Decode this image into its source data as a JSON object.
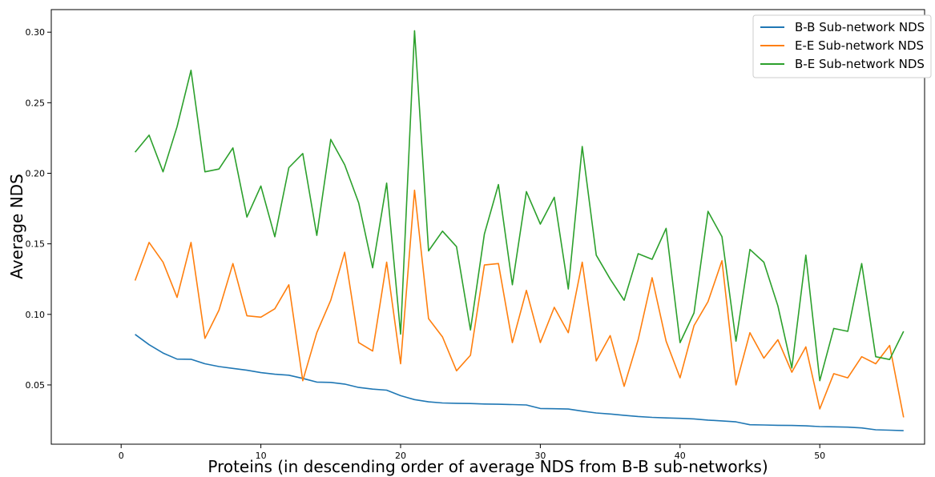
{
  "chart_data": {
    "type": "line",
    "xlabel": "Proteins (in descending order of average NDS from B-B sub-networks)",
    "ylabel": "Average NDS",
    "xlim": [
      -5,
      57.5
    ],
    "ylim": [
      0.008,
      0.316
    ],
    "x_ticks": [
      0,
      10,
      20,
      30,
      40,
      50
    ],
    "y_ticks": [
      0.05,
      0.1,
      0.15,
      0.2,
      0.25,
      0.3
    ],
    "y_tick_labels": [
      "0.05",
      "0.10",
      "0.15",
      "0.20",
      "0.25",
      "0.30"
    ],
    "x": [
      1,
      2,
      3,
      4,
      5,
      6,
      7,
      8,
      9,
      10,
      11,
      12,
      13,
      14,
      15,
      16,
      17,
      18,
      19,
      20,
      21,
      22,
      23,
      24,
      25,
      26,
      27,
      28,
      29,
      30,
      31,
      32,
      33,
      34,
      35,
      36,
      37,
      38,
      39,
      40,
      41,
      42,
      43,
      44,
      45,
      46,
      47,
      48,
      49,
      50,
      51,
      52,
      53,
      54,
      55,
      56
    ],
    "legend_position": "upper right",
    "grid": false,
    "series": [
      {
        "name": "B-B Sub-network NDS",
        "color": "#1f77b4",
        "values": [
          0.0858,
          0.0785,
          0.0726,
          0.0683,
          0.0682,
          0.065,
          0.063,
          0.0617,
          0.0604,
          0.0587,
          0.0576,
          0.0569,
          0.0546,
          0.052,
          0.0518,
          0.0506,
          0.0482,
          0.047,
          0.0463,
          0.0424,
          0.0396,
          0.038,
          0.0372,
          0.037,
          0.0368,
          0.0365,
          0.0363,
          0.0361,
          0.0358,
          0.0333,
          0.0331,
          0.0329,
          0.0314,
          0.0301,
          0.0294,
          0.0285,
          0.0276,
          0.027,
          0.0266,
          0.0263,
          0.0259,
          0.0251,
          0.0245,
          0.0238,
          0.0218,
          0.0216,
          0.0214,
          0.0213,
          0.021,
          0.0205,
          0.0203,
          0.0201,
          0.0195,
          0.0182,
          0.0179,
          0.0176
        ]
      },
      {
        "name": "E-E Sub-network NDS",
        "color": "#ff7f0e",
        "values": [
          0.124,
          0.151,
          0.137,
          0.112,
          0.151,
          0.083,
          0.103,
          0.136,
          0.099,
          0.098,
          0.104,
          0.121,
          0.053,
          0.087,
          0.11,
          0.144,
          0.08,
          0.074,
          0.137,
          0.065,
          0.188,
          0.097,
          0.084,
          0.06,
          0.071,
          0.135,
          0.136,
          0.08,
          0.117,
          0.08,
          0.105,
          0.087,
          0.137,
          0.067,
          0.085,
          0.049,
          0.082,
          0.126,
          0.081,
          0.055,
          0.092,
          0.109,
          0.138,
          0.05,
          0.087,
          0.069,
          0.082,
          0.059,
          0.077,
          0.033,
          0.058,
          0.055,
          0.07,
          0.065,
          0.078,
          0.027
        ]
      },
      {
        "name": "B-E Sub-network NDS",
        "color": "#2ca02c",
        "values": [
          0.215,
          0.227,
          0.201,
          0.233,
          0.273,
          0.201,
          0.203,
          0.218,
          0.169,
          0.191,
          0.155,
          0.204,
          0.214,
          0.156,
          0.224,
          0.206,
          0.179,
          0.133,
          0.193,
          0.086,
          0.301,
          0.145,
          0.159,
          0.148,
          0.089,
          0.157,
          0.192,
          0.121,
          0.187,
          0.164,
          0.183,
          0.118,
          0.219,
          0.142,
          0.125,
          0.11,
          0.143,
          0.139,
          0.161,
          0.08,
          0.101,
          0.173,
          0.155,
          0.081,
          0.146,
          0.137,
          0.106,
          0.062,
          0.142,
          0.053,
          0.09,
          0.088,
          0.136,
          0.07,
          0.068,
          0.088
        ]
      }
    ]
  }
}
